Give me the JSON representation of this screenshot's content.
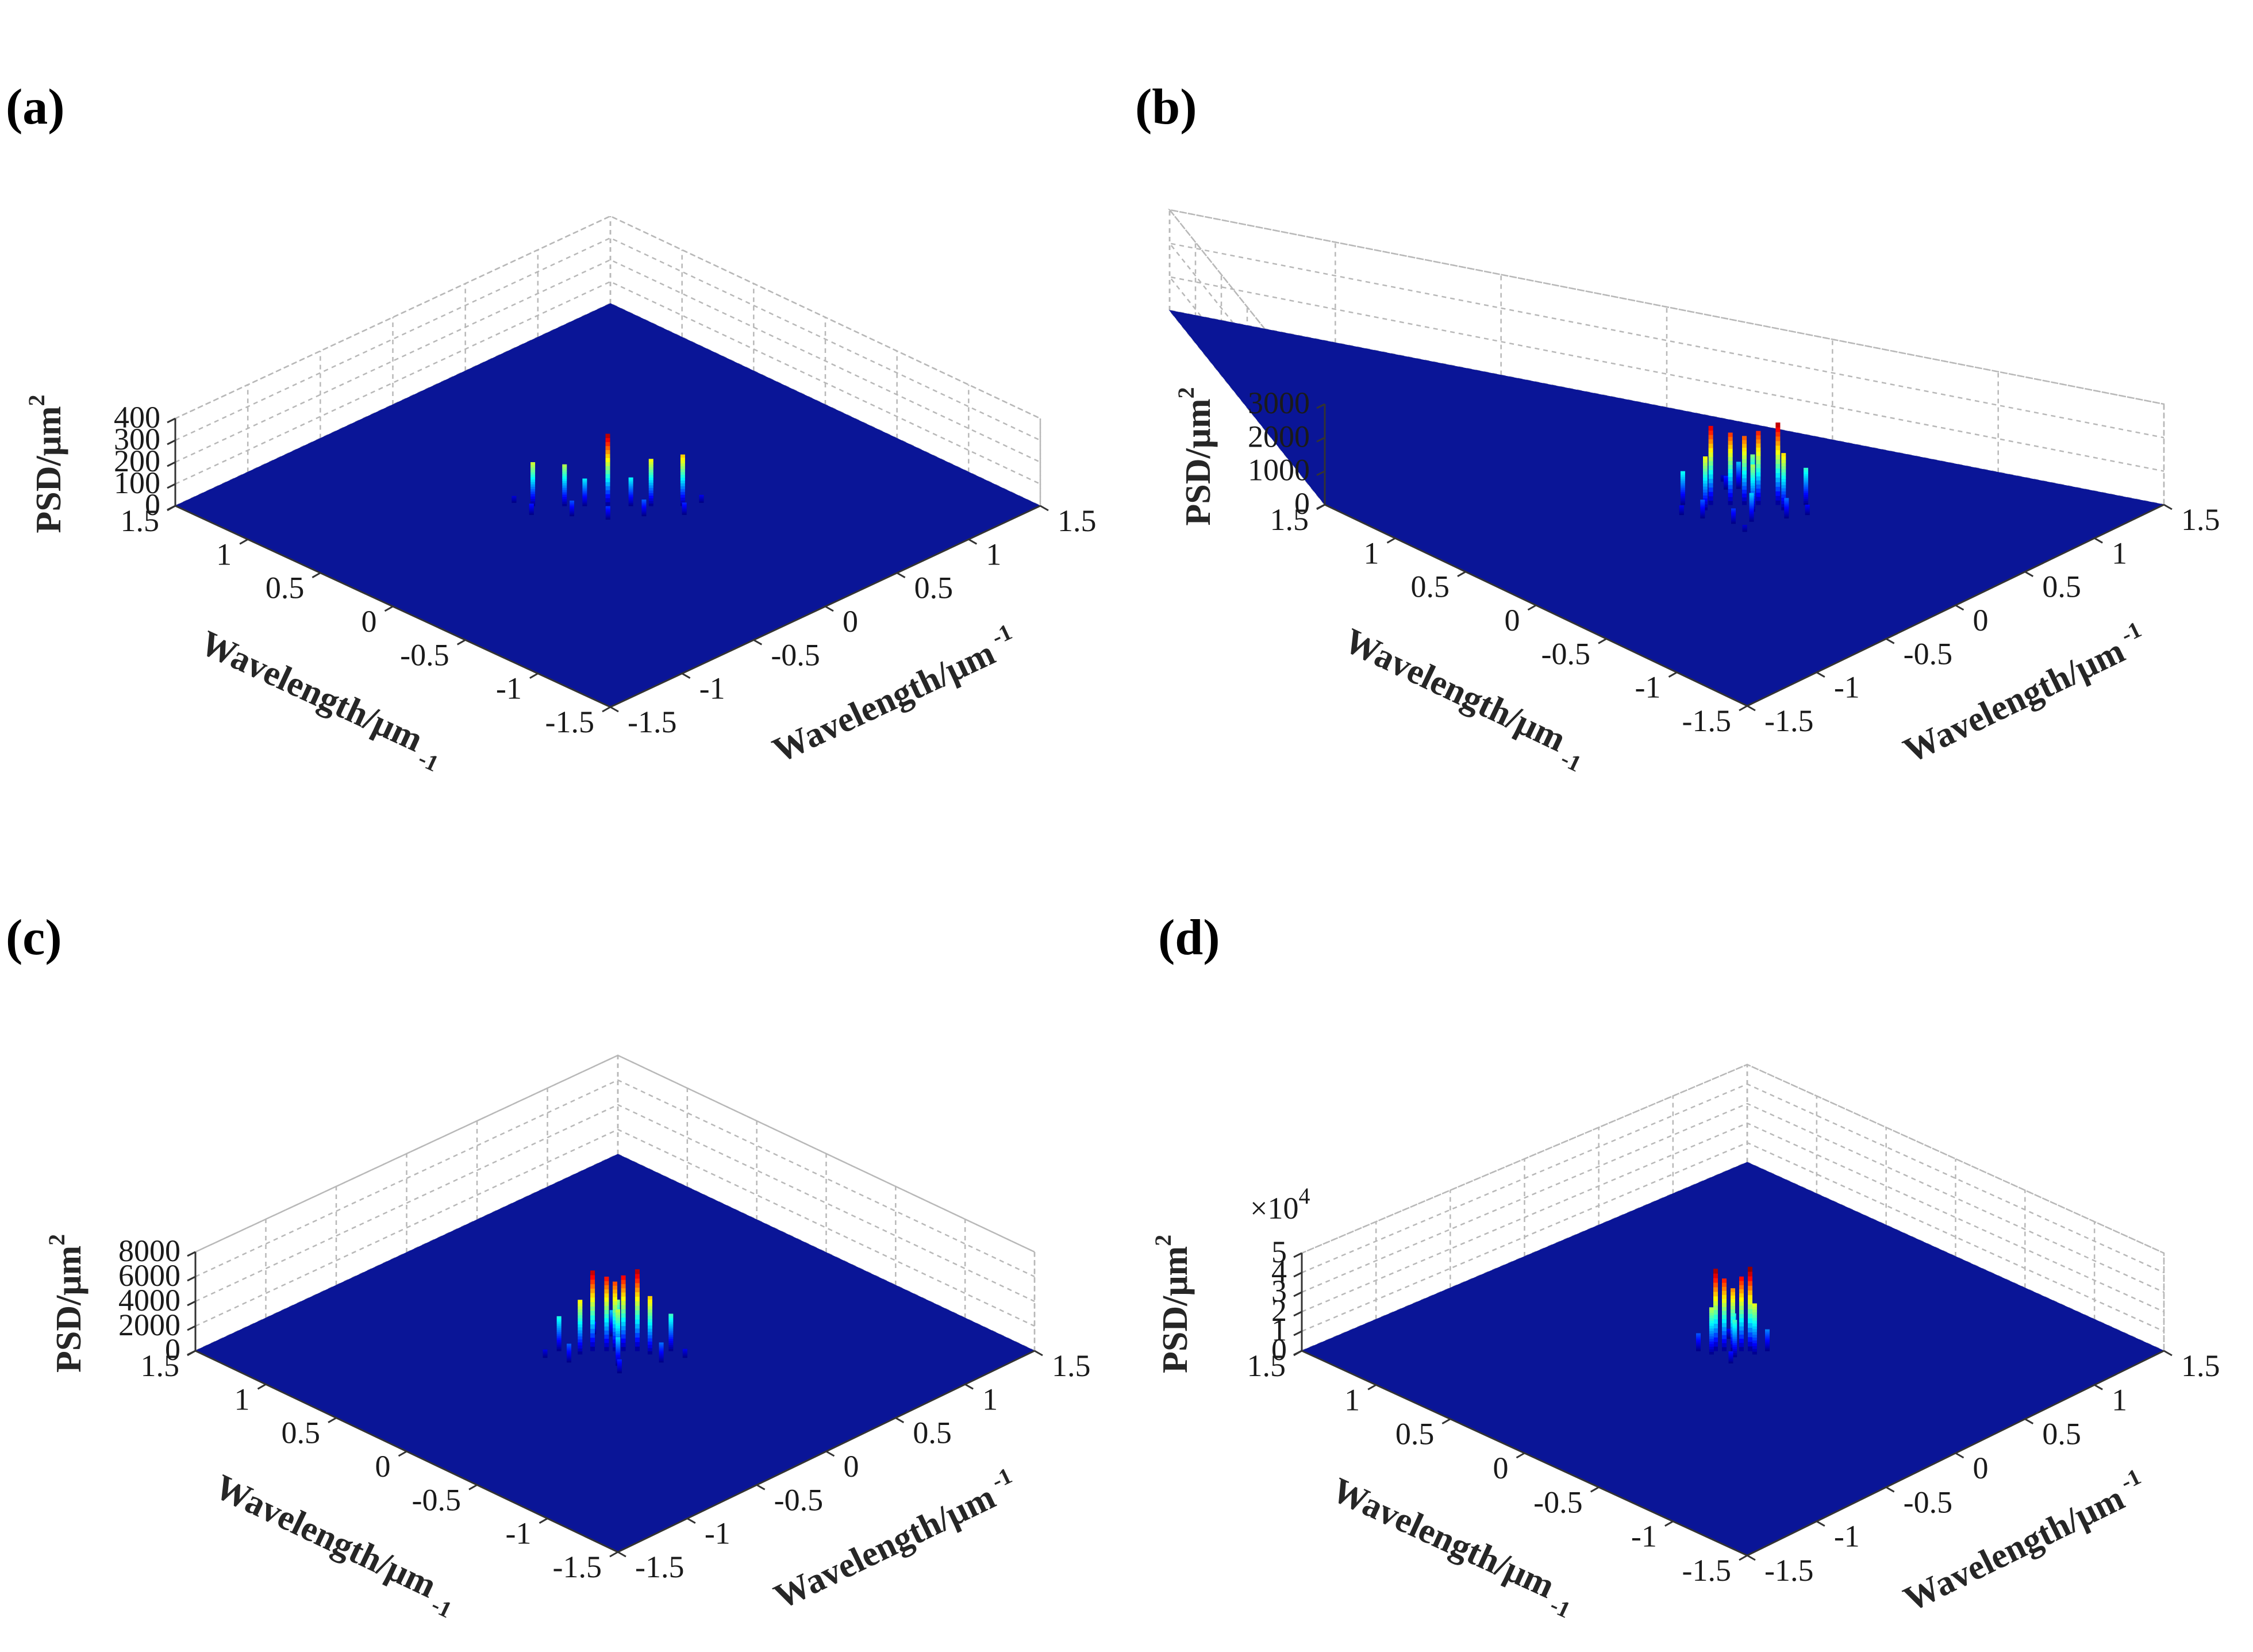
{
  "figure": {
    "colormap": "jet",
    "floor_color": "#0a1597"
  },
  "chart_data": [
    {
      "type": "surface",
      "panel": "(a)",
      "zlabel": "PSD/μm",
      "zlabel_sup": "2",
      "xlabel": "Wavelength/μm",
      "xlabel_sup": "-1",
      "ylabel": "Wavelength/μm",
      "ylabel_sup": "-1",
      "xlim": [
        -1.5,
        1.5
      ],
      "ylim": [
        -1.5,
        1.5
      ],
      "zlim": [
        0,
        400
      ],
      "x_ticks": [
        "1.5",
        "1",
        "0.5",
        "0",
        "-0.5",
        "-1",
        "-1.5"
      ],
      "y_ticks": [
        "-1.5",
        "-1",
        "-0.5",
        "0",
        "0.5",
        "1",
        "1.5"
      ],
      "z_ticks": [
        "0",
        "100",
        "200",
        "300",
        "400"
      ],
      "z_multiplier": "",
      "peaks": [
        {
          "dx": 0.0,
          "dy": 0.0,
          "z": 330
        },
        {
          "dx": -0.26,
          "dy": 0.26,
          "z": 235
        },
        {
          "dx": 0.26,
          "dy": -0.26,
          "z": 200
        },
        {
          "dx": -0.15,
          "dy": 0.15,
          "z": 215
        },
        {
          "dx": 0.15,
          "dy": -0.15,
          "z": 190
        },
        {
          "dx": -0.08,
          "dy": 0.08,
          "z": 130
        },
        {
          "dx": 0.08,
          "dy": -0.08,
          "z": 125
        },
        {
          "dx": -0.2,
          "dy": 0.05,
          "z": 75
        },
        {
          "dx": 0.05,
          "dy": -0.2,
          "z": 70
        },
        {
          "dx": -0.33,
          "dy": 0.2,
          "z": 55
        },
        {
          "dx": 0.2,
          "dy": -0.33,
          "z": 50
        },
        {
          "dx": -0.1,
          "dy": -0.1,
          "z": 60
        },
        {
          "dx": 0.12,
          "dy": 0.12,
          "z": 40
        },
        {
          "dx": -0.3,
          "dy": 0.35,
          "z": 35
        },
        {
          "dx": 0.35,
          "dy": -0.3,
          "z": 30
        }
      ]
    },
    {
      "type": "surface",
      "panel": "(b)",
      "zlabel": "PSD/μm",
      "zlabel_sup": "2",
      "xlabel": "Wavelength/μm",
      "xlabel_sup": "-1",
      "ylabel": "Wavelength/μm",
      "ylabel_sup": "-1",
      "xlim": [
        -1.5,
        1.5
      ],
      "ylim": [
        -1.5,
        1.5
      ],
      "zlim": [
        0,
        3000
      ],
      "x_ticks": [
        "1.5",
        "1",
        "0.5",
        "0",
        "-0.5",
        "-1",
        "-1.5"
      ],
      "y_ticks": [
        "-1.5",
        "-1",
        "-0.5",
        "0",
        "0.5",
        "1",
        "1.5"
      ],
      "z_ticks": [
        "0",
        "1000",
        "2000",
        "3000"
      ],
      "z_multiplier": "",
      "peaks": [
        {
          "dx": -0.12,
          "dy": 0.12,
          "z": 2450
        },
        {
          "dx": 0.12,
          "dy": -0.12,
          "z": 2350
        },
        {
          "dx": -0.05,
          "dy": 0.05,
          "z": 2200
        },
        {
          "dx": 0.05,
          "dy": -0.05,
          "z": 2150
        },
        {
          "dx": 0.0,
          "dy": 0.0,
          "z": 2050
        },
        {
          "dx": -0.18,
          "dy": 0.1,
          "z": 1700
        },
        {
          "dx": 0.1,
          "dy": -0.18,
          "z": 1600
        },
        {
          "dx": -0.08,
          "dy": -0.02,
          "z": 1400
        },
        {
          "dx": 0.02,
          "dy": 0.08,
          "z": 1300
        },
        {
          "dx": -0.22,
          "dy": 0.22,
          "z": 1100
        },
        {
          "dx": 0.22,
          "dy": -0.22,
          "z": 1000
        },
        {
          "dx": -0.15,
          "dy": -0.1,
          "z": 850
        },
        {
          "dx": 0.14,
          "dy": 0.1,
          "z": 800
        },
        {
          "dx": -0.25,
          "dy": 0.05,
          "z": 600
        },
        {
          "dx": 0.05,
          "dy": -0.25,
          "z": 550
        },
        {
          "dx": -0.1,
          "dy": -0.18,
          "z": 450
        },
        {
          "dx": 0.18,
          "dy": 0.05,
          "z": 400
        },
        {
          "dx": -0.3,
          "dy": 0.15,
          "z": 300
        },
        {
          "dx": 0.15,
          "dy": -0.3,
          "z": 280
        },
        {
          "dx": -0.2,
          "dy": -0.2,
          "z": 200
        },
        {
          "dx": 0.25,
          "dy": 0.1,
          "z": 180
        }
      ]
    },
    {
      "type": "surface",
      "panel": "(c)",
      "zlabel": "PSD/μm",
      "zlabel_sup": "2",
      "xlabel": "Wavelength/μm",
      "xlabel_sup": "-1",
      "ylabel": "Wavelength/μm",
      "ylabel_sup": "-1",
      "xlim": [
        -1.5,
        1.5
      ],
      "ylim": [
        -1.5,
        1.5
      ],
      "zlim": [
        0,
        8000
      ],
      "x_ticks": [
        "1.5",
        "1",
        "0.5",
        "0",
        "-0.5",
        "-1",
        "-1.5"
      ],
      "y_ticks": [
        "-1.5",
        "-1",
        "-0.5",
        "0",
        "0.5",
        "1",
        "1.5"
      ],
      "z_ticks": [
        "0",
        "2000",
        "4000",
        "6000",
        "8000"
      ],
      "z_multiplier": "",
      "peaks": [
        {
          "dx": -0.08,
          "dy": 0.08,
          "z": 6600
        },
        {
          "dx": 0.08,
          "dy": -0.08,
          "z": 6500
        },
        {
          "dx": -0.03,
          "dy": 0.03,
          "z": 6100
        },
        {
          "dx": 0.03,
          "dy": -0.03,
          "z": 6000
        },
        {
          "dx": 0.0,
          "dy": 0.0,
          "z": 5600
        },
        {
          "dx": -0.15,
          "dy": 0.1,
          "z": 4700
        },
        {
          "dx": 0.1,
          "dy": -0.15,
          "z": 4400
        },
        {
          "dx": -0.06,
          "dy": -0.04,
          "z": 3900
        },
        {
          "dx": 0.04,
          "dy": 0.06,
          "z": 3600
        },
        {
          "dx": -0.2,
          "dy": 0.2,
          "z": 3000
        },
        {
          "dx": 0.2,
          "dy": -0.2,
          "z": 2800
        },
        {
          "dx": -0.12,
          "dy": -0.1,
          "z": 2300
        },
        {
          "dx": 0.12,
          "dy": 0.1,
          "z": 2100
        },
        {
          "dx": -0.25,
          "dy": 0.08,
          "z": 1600
        },
        {
          "dx": 0.08,
          "dy": -0.25,
          "z": 1500
        },
        {
          "dx": -0.18,
          "dy": -0.15,
          "z": 1100
        },
        {
          "dx": 0.2,
          "dy": 0.05,
          "z": 1000
        },
        {
          "dx": -0.3,
          "dy": 0.2,
          "z": 700
        },
        {
          "dx": 0.2,
          "dy": -0.3,
          "z": 650
        }
      ]
    },
    {
      "type": "surface",
      "panel": "(d)",
      "zlabel": "PSD/μm",
      "zlabel_sup": "2",
      "xlabel": "Wavelength/μm",
      "xlabel_sup": "-1",
      "ylabel": "Wavelength/μm",
      "ylabel_sup": "-1",
      "xlim": [
        -1.5,
        1.5
      ],
      "ylim": [
        -1.5,
        1.5
      ],
      "zlim": [
        0,
        5
      ],
      "x_ticks": [
        "1.5",
        "1",
        "0.5",
        "0",
        "-0.5",
        "-1",
        "-1.5"
      ],
      "y_ticks": [
        "-1.5",
        "-1",
        "-0.5",
        "0",
        "0.5",
        "1",
        "1.5"
      ],
      "z_ticks": [
        "0",
        "1",
        "2",
        "3",
        "4",
        "5"
      ],
      "z_multiplier": "×10",
      "z_multiplier_sup": "4",
      "peaks": [
        {
          "dx": -0.06,
          "dy": 0.06,
          "z": 4.3
        },
        {
          "dx": 0.06,
          "dy": -0.06,
          "z": 4.2
        },
        {
          "dx": -0.03,
          "dy": 0.03,
          "z": 3.8
        },
        {
          "dx": 0.03,
          "dy": -0.03,
          "z": 3.7
        },
        {
          "dx": 0.0,
          "dy": 0.0,
          "z": 3.2
        },
        {
          "dx": -0.1,
          "dy": 0.05,
          "z": 2.6
        },
        {
          "dx": 0.05,
          "dy": -0.1,
          "z": 2.4
        },
        {
          "dx": -0.05,
          "dy": -0.04,
          "z": 1.9
        },
        {
          "dx": 0.04,
          "dy": 0.05,
          "z": 1.6
        },
        {
          "dx": -0.12,
          "dy": 0.12,
          "z": 1.1
        },
        {
          "dx": 0.12,
          "dy": -0.12,
          "z": 0.9
        },
        {
          "dx": -0.08,
          "dy": -0.1,
          "z": 0.6
        },
        {
          "dx": 0.1,
          "dy": 0.08,
          "z": 0.5
        }
      ]
    }
  ]
}
